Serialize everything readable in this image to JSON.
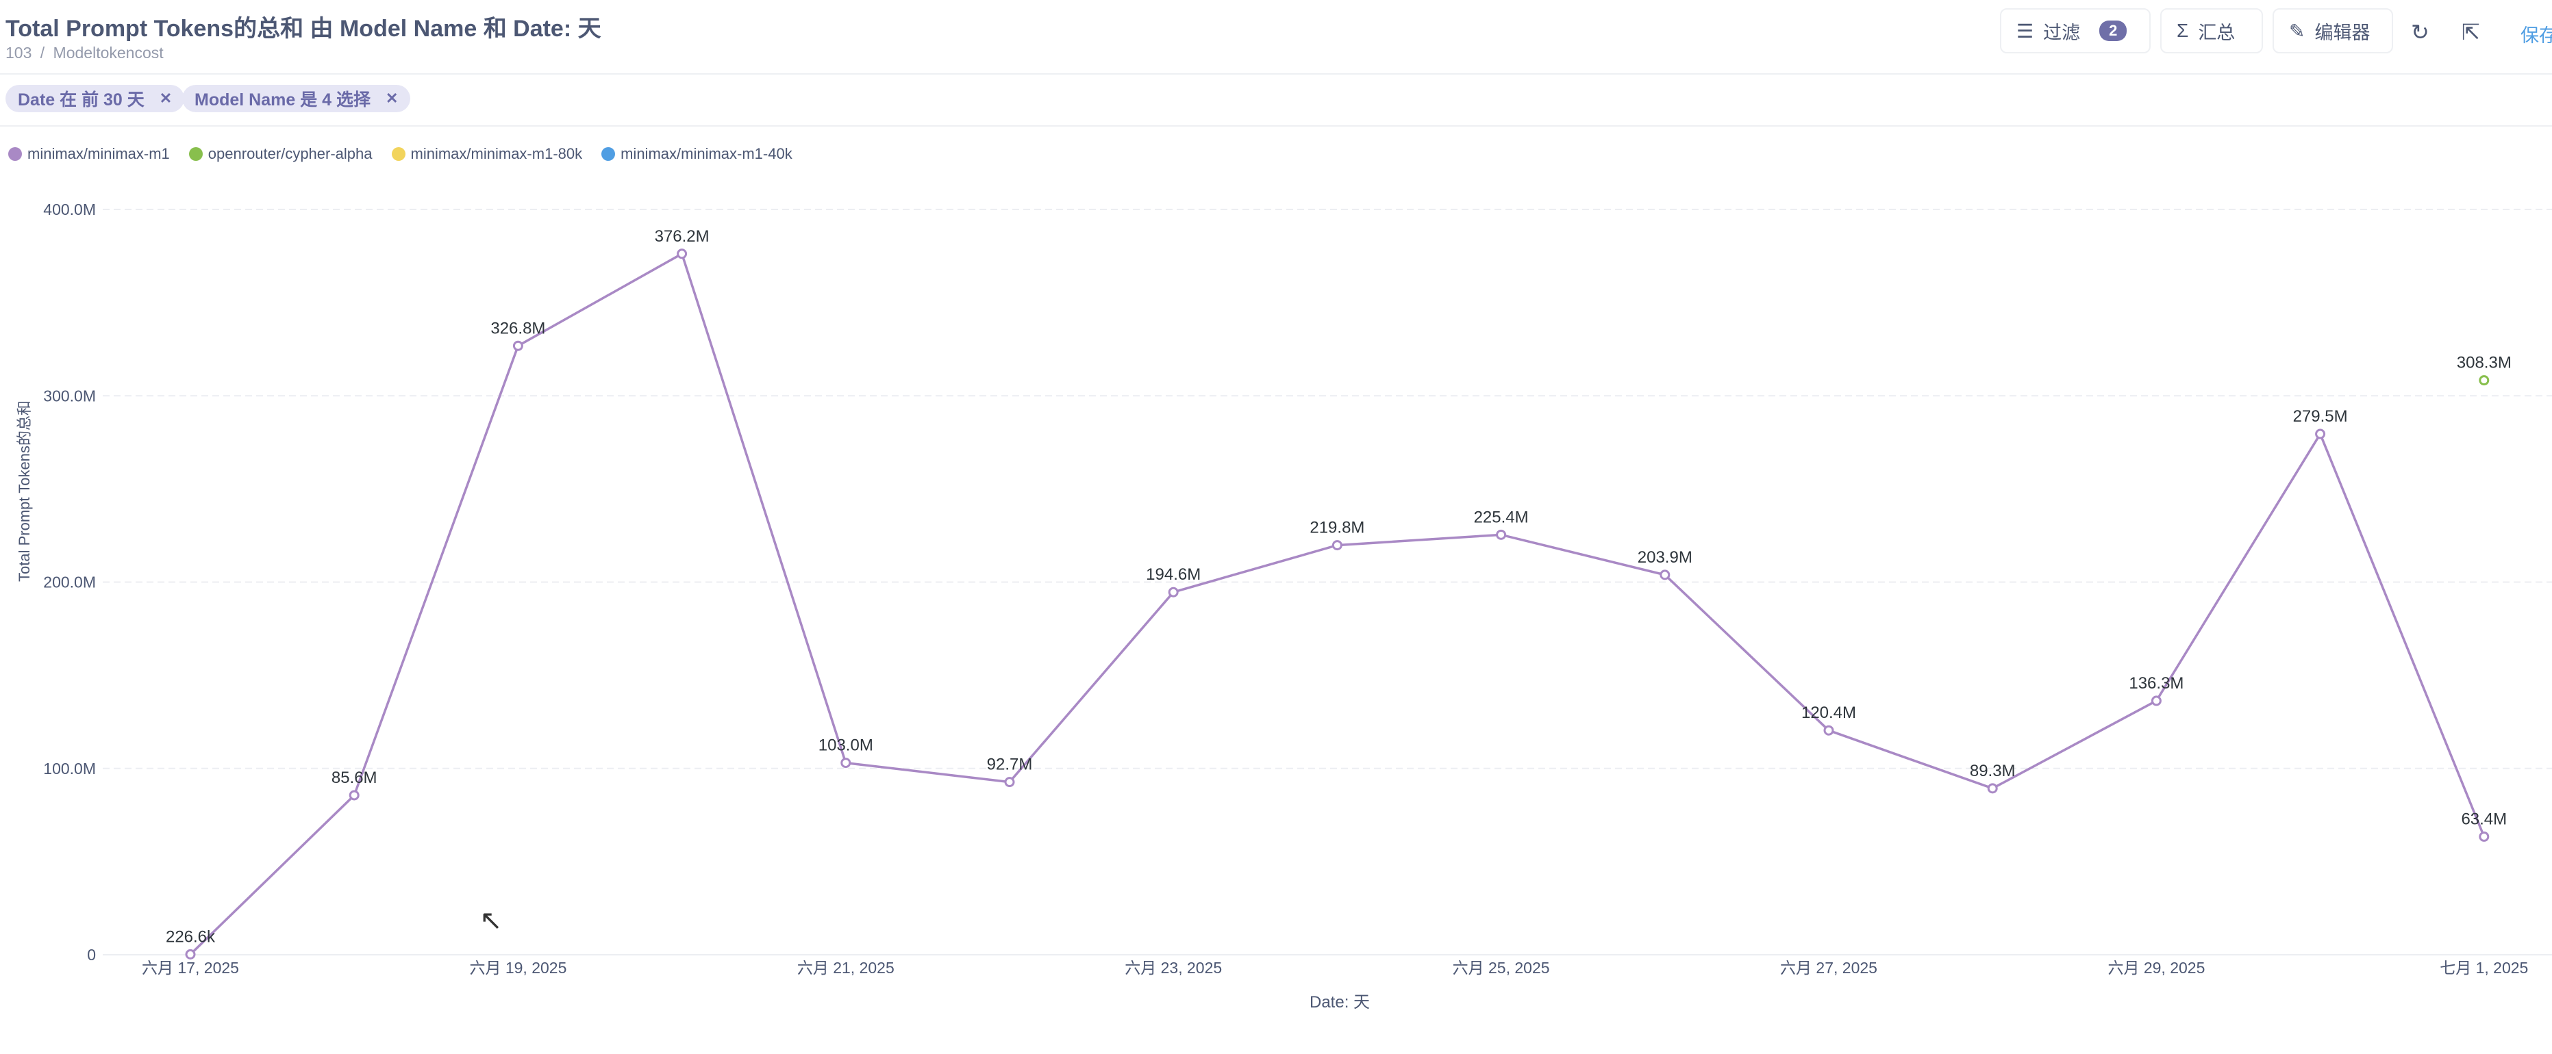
{
  "header": {
    "title": "Total Prompt Tokens的总和 由 Model Name 和 Date: 天",
    "breadcrumb": [
      "103",
      "/",
      "Modeltokencost"
    ]
  },
  "toolbar": {
    "filter_label": "过滤",
    "filter_count": "2",
    "summarize_label": "汇总",
    "editor_label": "编辑器",
    "save_label": "保存"
  },
  "filters": [
    {
      "label": "Date 在 前 30 天"
    },
    {
      "label": "Model Name 是 4 选择"
    }
  ],
  "legend": [
    {
      "name": "minimax/minimax-m1",
      "color": "#a989c5"
    },
    {
      "name": "openrouter/cypher-alpha",
      "color": "#88bf4d"
    },
    {
      "name": "minimax/minimax-m1-80k",
      "color": "#f2d45c"
    },
    {
      "name": "minimax/minimax-m1-40k",
      "color": "#509ee3"
    }
  ],
  "chart_data": {
    "type": "line",
    "xlabel": "Date: 天",
    "ylabel": "Total Prompt Tokens的总和",
    "ylim": [
      0,
      400000000
    ],
    "y_ticks": [
      "0",
      "100.0M",
      "200.0M",
      "300.0M",
      "400.0M"
    ],
    "x_tick_labels": [
      "六月 17, 2025",
      "六月 19, 2025",
      "六月 21, 2025",
      "六月 23, 2025",
      "六月 25, 2025",
      "六月 27, 2025",
      "六月 29, 2025",
      "七月 1, 2025"
    ],
    "x": [
      "2025-06-17",
      "2025-06-18",
      "2025-06-19",
      "2025-06-20",
      "2025-06-21",
      "2025-06-22",
      "2025-06-23",
      "2025-06-24",
      "2025-06-25",
      "2025-06-26",
      "2025-06-27",
      "2025-06-28",
      "2025-06-29",
      "2025-06-30",
      "2025-07-01"
    ],
    "series": [
      {
        "name": "minimax/minimax-m1",
        "color": "#a989c5",
        "values": [
          226600,
          85600000,
          326800000,
          376200000,
          103000000,
          92700000,
          194600000,
          219800000,
          225400000,
          203900000,
          120400000,
          89300000,
          136300000,
          279500000,
          63400000
        ],
        "labels": [
          "226.6k",
          "85.6M",
          "326.8M",
          "376.2M",
          "103.0M",
          "92.7M",
          "194.6M",
          "219.8M",
          "225.4M",
          "203.9M",
          "120.4M",
          "89.3M",
          "136.3M",
          "279.5M",
          "63.4M"
        ]
      },
      {
        "name": "openrouter/cypher-alpha",
        "color": "#88bf4d",
        "values": [
          null,
          null,
          null,
          null,
          null,
          null,
          null,
          null,
          null,
          null,
          null,
          null,
          null,
          null,
          308300000
        ],
        "labels": [
          null,
          null,
          null,
          null,
          null,
          null,
          null,
          null,
          null,
          null,
          null,
          null,
          null,
          null,
          "308.3M"
        ]
      }
    ],
    "grid": true,
    "legend_position": "top-left"
  }
}
